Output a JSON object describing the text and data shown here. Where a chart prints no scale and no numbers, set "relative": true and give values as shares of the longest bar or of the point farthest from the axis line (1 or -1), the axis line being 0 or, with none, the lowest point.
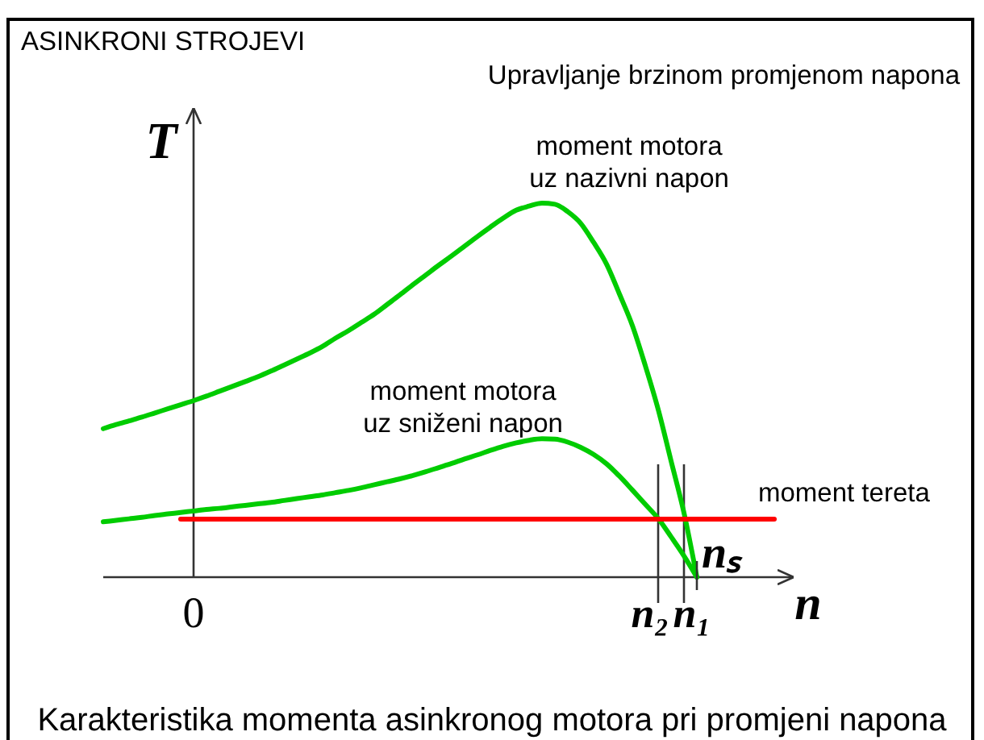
{
  "chart_data": {
    "type": "line",
    "title": "ASINKRONI STROJEVI",
    "subtitle": "Upravljanje brzinom promjenom napona",
    "xlabel": "n",
    "ylabel": "T",
    "relative": true,
    "categories": [
      null,
      null,
      null,
      null,
      null,
      null,
      null,
      "0",
      null,
      null,
      null,
      null,
      null,
      null,
      null,
      null,
      null,
      null,
      null,
      null,
      null,
      null,
      null,
      null,
      null,
      null,
      null,
      null,
      null,
      null,
      null,
      null,
      null,
      null,
      null,
      null,
      null,
      null,
      null,
      null,
      null,
      null,
      null,
      "n₂",
      null,
      "n₁",
      null,
      null,
      null,
      null,
      null,
      null,
      null
    ],
    "series": [
      {
        "name": "moment motora\nuz nazivni napon",
        "color": "#00cc00",
        "values": [
          0.397,
          0.408,
          0.418,
          0.428,
          0.439,
          0.45,
          0.461,
          0.472,
          0.484,
          0.497,
          0.51,
          0.523,
          0.536,
          0.551,
          0.567,
          0.583,
          0.599,
          0.617,
          0.639,
          0.659,
          0.681,
          0.703,
          0.729,
          0.755,
          0.782,
          0.808,
          0.834,
          0.859,
          0.885,
          0.911,
          0.936,
          0.96,
          0.981,
          0.992,
          1,
          0.997,
          0.977,
          0.946,
          0.895,
          0.837,
          0.757,
          0.673,
          0.566,
          0.449,
          0.311,
          0.172,
          0,
          null,
          null,
          null,
          null,
          null,
          null
        ]
      },
      {
        "name": "moment motora\nuz sniženi napon",
        "color": "#00cc00",
        "values": [
          0.148,
          0.152,
          0.156,
          0.16,
          0.165,
          0.169,
          0.173,
          0.177,
          0.181,
          0.184,
          0.188,
          0.192,
          0.196,
          0.2,
          0.205,
          0.21,
          0.215,
          0.22,
          0.226,
          0.232,
          0.239,
          0.247,
          0.255,
          0.263,
          0.272,
          0.282,
          0.293,
          0.304,
          0.316,
          0.327,
          0.339,
          0.35,
          0.359,
          0.366,
          0.37,
          0.369,
          0.361,
          0.347,
          0.328,
          0.303,
          0.27,
          0.233,
          0.195,
          0.157,
          0.108,
          0.057,
          0,
          null,
          null,
          null,
          null,
          null,
          null
        ]
      },
      {
        "name": "moment tereta",
        "color": "#ff0000",
        "values": [
          null,
          null,
          null,
          null,
          null,
          null,
          0.155,
          0.155,
          0.155,
          0.155,
          0.155,
          0.155,
          0.155,
          0.155,
          0.155,
          0.155,
          0.155,
          0.155,
          0.155,
          0.155,
          0.155,
          0.155,
          0.155,
          0.155,
          0.155,
          0.155,
          0.155,
          0.155,
          0.155,
          0.155,
          0.155,
          0.155,
          0.155,
          0.155,
          0.155,
          0.155,
          0.155,
          0.155,
          0.155,
          0.155,
          0.155,
          0.155,
          0.155,
          0.155,
          0.155,
          0.155,
          0.155,
          0.155,
          0.155,
          0.155,
          0.155,
          0.155,
          0.155
        ]
      }
    ],
    "ref_lines": [
      {
        "axis": "x",
        "value": "n₂"
      },
      {
        "axis": "x",
        "value": "n₁"
      }
    ],
    "annotations": [
      "nₛ",
      "Karakteristika momenta asinkronog motora pri promjeni napona"
    ]
  }
}
